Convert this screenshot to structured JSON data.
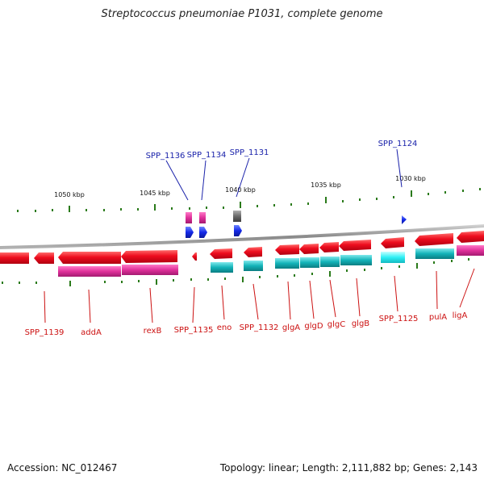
{
  "title": "Streptococcus pneumoniae P1031, complete genome",
  "footer": {
    "accession": "Accession: NC_012467",
    "summary": "Topology: linear; Length: 2,111,882 bp; Genes: 2,143"
  },
  "ruler_labels": [
    "1050 kbp",
    "1045 kbp",
    "1040 kbp",
    "1035 kbp",
    "1030 kbp"
  ],
  "blue_labels": [
    "SPP_1136",
    "SPP_1134",
    "SPP_1131",
    "SPP_1124"
  ],
  "red_labels": [
    "SPP_1139",
    "addA",
    "rexB",
    "SPP_1135",
    "eno",
    "SPP_1132",
    "glgA",
    "glgD",
    "glgC",
    "glgB",
    "SPP_1125",
    "pulA",
    "ligA"
  ],
  "colors": {
    "forward_gene": "#e8001c",
    "reverse_gene_magenta": "#e0309a",
    "reverse_gene_cyan": "#12b3b8",
    "cyan_highlight": "#2ef0f5",
    "small_feature": "#1428e8",
    "pseudo_gene": "#666666",
    "label_red": "#cc1111",
    "label_blue": "#1a22aa",
    "tick_green": "#2a7a1a",
    "backbone": "#888888"
  }
}
